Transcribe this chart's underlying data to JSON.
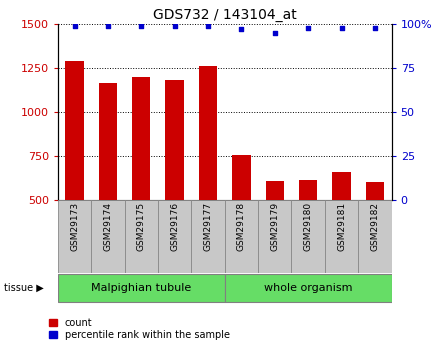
{
  "title": "GDS732 / 143104_at",
  "samples": [
    "GSM29173",
    "GSM29174",
    "GSM29175",
    "GSM29176",
    "GSM29177",
    "GSM29178",
    "GSM29179",
    "GSM29180",
    "GSM29181",
    "GSM29182"
  ],
  "counts": [
    1290,
    1165,
    1200,
    1185,
    1260,
    755,
    610,
    615,
    660,
    605
  ],
  "percentile_ranks": [
    99,
    99,
    99,
    99,
    99,
    97,
    95,
    98,
    98,
    98
  ],
  "group1_label": "Malpighian tubule",
  "group1_count": 5,
  "group2_label": "whole organism",
  "group2_count": 5,
  "group_color": "#66DD66",
  "bar_color": "#CC0000",
  "dot_color": "#0000CC",
  "ylim_left": [
    500,
    1500
  ],
  "ylim_right": [
    0,
    100
  ],
  "yticks_left": [
    500,
    750,
    1000,
    1250,
    1500
  ],
  "yticks_right": [
    0,
    25,
    50,
    75,
    100
  ],
  "left_tick_color": "#CC0000",
  "right_tick_color": "#0000CC",
  "title_fontsize": 10,
  "legend_count_label": "count",
  "legend_pct_label": "percentile rank within the sample",
  "tissue_label": "tissue",
  "sample_box_color": "#C8C8C8",
  "sample_box_edge": "#888888"
}
